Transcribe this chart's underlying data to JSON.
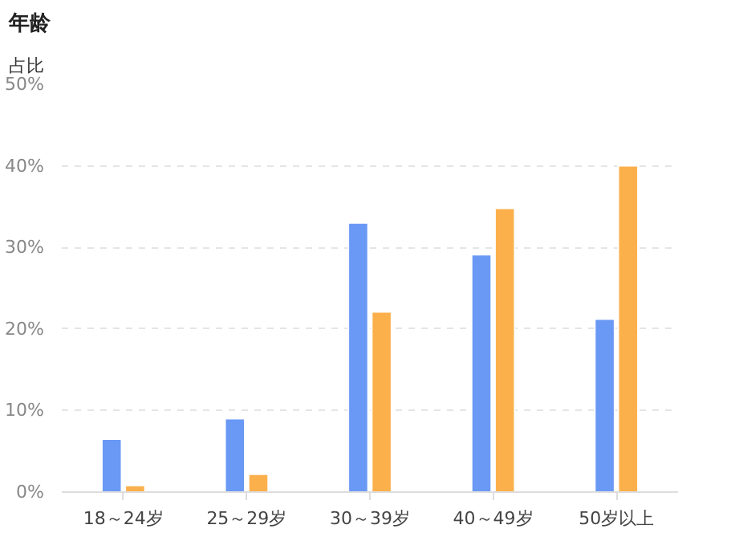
{
  "chart_data": {
    "type": "bar",
    "title": "年龄",
    "ylabel": "占比",
    "categories": [
      "18～24岁",
      "25～29岁",
      "30～39岁",
      "40～49岁",
      "50岁以上"
    ],
    "series": [
      {
        "color": "#6a98f5",
        "values": [
          6.5,
          9.0,
          33.0,
          29.1,
          21.2
        ]
      },
      {
        "color": "#fbb04c",
        "values": [
          0.8,
          2.2,
          22.1,
          34.8,
          40.0
        ]
      }
    ],
    "ylim": [
      0,
      50
    ],
    "yticks": [
      {
        "value": 0,
        "label": "0%"
      },
      {
        "value": 10,
        "label": "10%"
      },
      {
        "value": 20,
        "label": "20%"
      },
      {
        "value": 30,
        "label": "30%"
      },
      {
        "value": 40,
        "label": "40%"
      },
      {
        "value": 50,
        "label": "50%"
      }
    ],
    "grid": "y"
  }
}
